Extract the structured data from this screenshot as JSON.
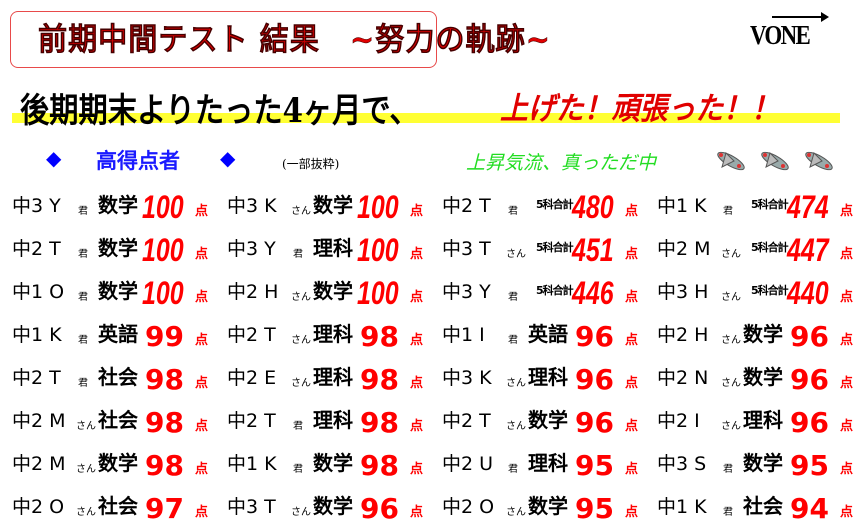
{
  "header": {
    "title": "前期中間テスト 結果　~努力の軌跡~",
    "logo": "VONE"
  },
  "banner": {
    "text": "後期期末よりたった4ヶ月で、",
    "emphasis": "上げた！頑張った！！",
    "highlight_color": "#ffff33"
  },
  "section": {
    "diamond": "◆",
    "title": "高得点者",
    "note": "(一部抜粋)",
    "slogan": "上昇気流、真っただ中",
    "icons": [
      "airplane-icon",
      "airplane-icon",
      "airplane-icon"
    ]
  },
  "unit": "点",
  "columns": [
    [
      {
        "name": "中3 Y",
        "hon": "君",
        "subject": "数学",
        "score": "100"
      },
      {
        "name": "中2 T",
        "hon": "君",
        "subject": "数学",
        "score": "100"
      },
      {
        "name": "中1 O",
        "hon": "君",
        "subject": "数学",
        "score": "100"
      },
      {
        "name": "中1 K",
        "hon": "君",
        "subject": "英語",
        "score": "99"
      },
      {
        "name": "中2 T",
        "hon": "君",
        "subject": "社会",
        "score": "98"
      },
      {
        "name": "中2 M",
        "hon": "さん",
        "subject": "社会",
        "score": "98"
      },
      {
        "name": "中2 M",
        "hon": "さん",
        "subject": "数学",
        "score": "98"
      },
      {
        "name": "中2 O",
        "hon": "さん",
        "subject": "社会",
        "score": "97"
      }
    ],
    [
      {
        "name": "中3 K",
        "hon": "さん",
        "subject": "数学",
        "score": "100"
      },
      {
        "name": "中3 Y",
        "hon": "君",
        "subject": "理科",
        "score": "100"
      },
      {
        "name": "中2 H",
        "hon": "さん",
        "subject": "数学",
        "score": "100"
      },
      {
        "name": "中2 T",
        "hon": "さん",
        "subject": "理科",
        "score": "98"
      },
      {
        "name": "中2 E",
        "hon": "さん",
        "subject": "理科",
        "score": "98"
      },
      {
        "name": "中2 T",
        "hon": "君",
        "subject": "理科",
        "score": "98"
      },
      {
        "name": "中1 K",
        "hon": "君",
        "subject": "数学",
        "score": "98"
      },
      {
        "name": "中3 T",
        "hon": "さん",
        "subject": "数学",
        "score": "96"
      }
    ],
    [
      {
        "name": "中2 T",
        "hon": "君",
        "subject": "5科合計",
        "score": "480"
      },
      {
        "name": "中3 T",
        "hon": "さん",
        "subject": "5科合計",
        "score": "451"
      },
      {
        "name": "中3 Y",
        "hon": "君",
        "subject": "5科合計",
        "score": "446"
      },
      {
        "name": "中1 I",
        "hon": "君",
        "subject": "英語",
        "score": "96"
      },
      {
        "name": "中3 K",
        "hon": "さん",
        "subject": "理科",
        "score": "96"
      },
      {
        "name": "中2 T",
        "hon": "さん",
        "subject": "数学",
        "score": "96"
      },
      {
        "name": "中2 U",
        "hon": "君",
        "subject": "理科",
        "score": "95"
      },
      {
        "name": "中2 O",
        "hon": "さん",
        "subject": "数学",
        "score": "95"
      }
    ],
    [
      {
        "name": "中1 K",
        "hon": "君",
        "subject": "5科合計",
        "score": "474"
      },
      {
        "name": "中2 M",
        "hon": "さん",
        "subject": "5科合計",
        "score": "447"
      },
      {
        "name": "中3 H",
        "hon": "さん",
        "subject": "5科合計",
        "score": "440"
      },
      {
        "name": "中2 H",
        "hon": "さん",
        "subject": "数学",
        "score": "96"
      },
      {
        "name": "中2 N",
        "hon": "さん",
        "subject": "数学",
        "score": "96"
      },
      {
        "name": "中2 I",
        "hon": "さん",
        "subject": "理科",
        "score": "96"
      },
      {
        "name": "中3 S",
        "hon": "君",
        "subject": "数学",
        "score": "95"
      },
      {
        "name": "中1 K",
        "hon": "君",
        "subject": "社会",
        "score": "94"
      }
    ]
  ]
}
